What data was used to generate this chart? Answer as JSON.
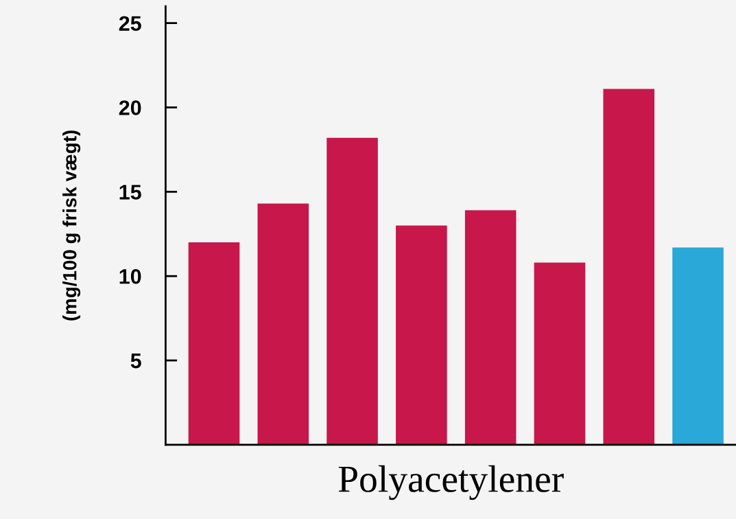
{
  "chart_data": {
    "type": "bar",
    "xlabel": "Polyacetylener",
    "ylabel": "(mg/100 g frisk vægt)",
    "categories": [
      null,
      null,
      null,
      null,
      null,
      null,
      null,
      null
    ],
    "values": [
      12.0,
      14.3,
      18.2,
      13.0,
      13.9,
      10.8,
      21.1,
      11.7
    ],
    "colors": [
      "#c8174a",
      "#c8174a",
      "#c8174a",
      "#c8174a",
      "#c8174a",
      "#c8174a",
      "#c8174a",
      "#2aa8d8"
    ],
    "ylim": [
      0,
      26
    ],
    "yticks": [
      5,
      10,
      15,
      20,
      25
    ],
    "grid": false
  }
}
